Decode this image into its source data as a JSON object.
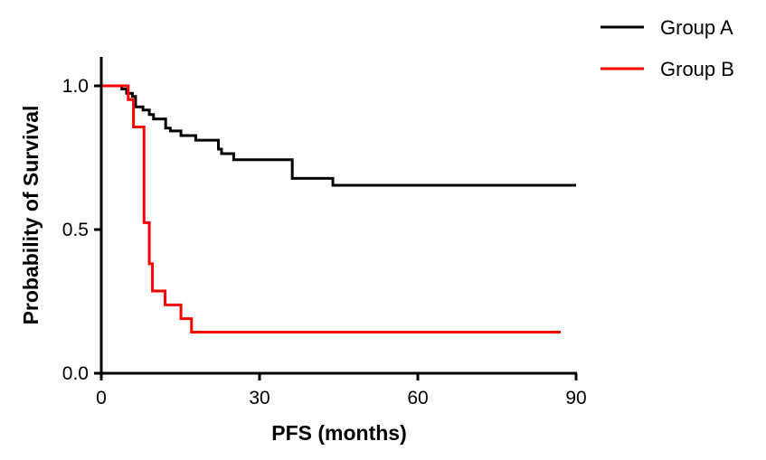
{
  "chart_data": {
    "type": "line",
    "subtype": "kaplan-meier",
    "title": "",
    "xlabel": "PFS (months)",
    "ylabel": "Probability of Survival",
    "xlim": [
      0,
      90
    ],
    "ylim": [
      0,
      1.1
    ],
    "xticks": [
      "0",
      "30",
      "60",
      "90"
    ],
    "xtick_values": [
      0,
      30,
      60,
      90
    ],
    "yticks": [
      "0.0",
      "0.5",
      "1.0"
    ],
    "ytick_values": [
      0,
      0.5,
      1.0
    ],
    "grid": false,
    "legend_position": "top-right",
    "series": [
      {
        "name": "Group A",
        "color": "#000000",
        "steps": [
          [
            0,
            1.0
          ],
          [
            3.9,
            0.989
          ],
          [
            4.8,
            0.974
          ],
          [
            5.9,
            0.963
          ],
          [
            6.5,
            0.927
          ],
          [
            7.9,
            0.916
          ],
          [
            9.1,
            0.9
          ],
          [
            9.9,
            0.885
          ],
          [
            12.2,
            0.853
          ],
          [
            13.1,
            0.843
          ],
          [
            15.1,
            0.827
          ],
          [
            17.9,
            0.811
          ],
          [
            22.2,
            0.78
          ],
          [
            22.8,
            0.764
          ],
          [
            25.1,
            0.743
          ],
          [
            36.2,
            0.678
          ],
          [
            43.9,
            0.654
          ]
        ],
        "end": 90
      },
      {
        "name": "Group B",
        "color": "#ff0000",
        "steps": [
          [
            0,
            1.0
          ],
          [
            5.1,
            0.952
          ],
          [
            6.1,
            0.857
          ],
          [
            8.1,
            0.524
          ],
          [
            9.1,
            0.381
          ],
          [
            9.7,
            0.286
          ],
          [
            12.1,
            0.238
          ],
          [
            15.1,
            0.19
          ],
          [
            17.1,
            0.143
          ]
        ],
        "end": 87.1
      }
    ]
  }
}
